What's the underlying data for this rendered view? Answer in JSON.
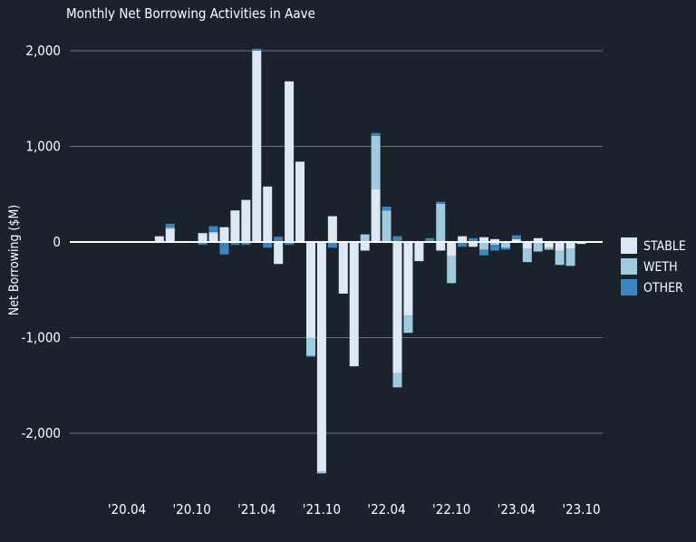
{
  "chart_data": {
    "type": "bar",
    "stacked": true,
    "title": "Monthly Net Borrowing Activities in Aave",
    "xlabel": "",
    "ylabel": "Net Borrowing ($M)",
    "ylim": [
      -2500,
      2100
    ],
    "yticks": [
      {
        "value": 2000,
        "label": "2,000"
      },
      {
        "value": 1000,
        "label": "1,000"
      },
      {
        "value": 0,
        "label": "0"
      },
      {
        "value": -1000,
        "label": "-1,000"
      },
      {
        "value": -2000,
        "label": "-2,000"
      }
    ],
    "xticks": [
      {
        "value": "2020-04",
        "label": "'20.04"
      },
      {
        "value": "2020-10",
        "label": "'20.10"
      },
      {
        "value": "2021-04",
        "label": "'21.04"
      },
      {
        "value": "2021-10",
        "label": "'21.10"
      },
      {
        "value": "2022-04",
        "label": "'22.04"
      },
      {
        "value": "2022-10",
        "label": "'22.10"
      },
      {
        "value": "2023-04",
        "label": "'23.04"
      },
      {
        "value": "2023-10",
        "label": "'23.10"
      }
    ],
    "grid": true,
    "legend_position": "right",
    "categories": [
      "2020-07",
      "2020-08",
      "2020-09",
      "2020-10",
      "2020-11",
      "2020-12",
      "2021-01",
      "2021-02",
      "2021-03",
      "2021-04",
      "2021-05",
      "2021-06",
      "2021-07",
      "2021-08",
      "2021-09",
      "2021-10",
      "2021-11",
      "2021-12",
      "2022-01",
      "2022-02",
      "2022-03",
      "2022-04",
      "2022-05",
      "2022-06",
      "2022-07",
      "2022-08",
      "2022-09",
      "2022-10",
      "2022-11",
      "2022-12",
      "2023-01",
      "2023-02",
      "2023-03",
      "2023-04",
      "2023-05",
      "2023-06",
      "2023-07",
      "2023-08",
      "2023-09",
      "2023-10"
    ],
    "series": [
      {
        "name": "STABLE",
        "color": "#dce9f5",
        "values": [
          60,
          140,
          5,
          0,
          85,
          90,
          155,
          330,
          440,
          2000,
          580,
          -230,
          1680,
          840,
          -1000,
          -2400,
          270,
          -540,
          -1300,
          -90,
          550,
          0,
          -1370,
          -770,
          -200,
          10,
          -90,
          -150,
          60,
          -50,
          50,
          30,
          0,
          30,
          -70,
          40,
          -60,
          -90,
          -70,
          -20
        ]
      },
      {
        "name": "WETH",
        "color": "#9fcbe1",
        "values": [
          0,
          10,
          0,
          5,
          10,
          15,
          0,
          0,
          0,
          0,
          0,
          0,
          0,
          0,
          -190,
          -20,
          0,
          0,
          0,
          80,
          560,
          330,
          -150,
          -180,
          0,
          0,
          400,
          -280,
          0,
          0,
          -80,
          -30,
          -60,
          0,
          -140,
          -100,
          -20,
          -150,
          -180,
          0
        ]
      },
      {
        "name": "OTHER",
        "color": "#3b86c2",
        "values": [
          0,
          40,
          5,
          0,
          -30,
          60,
          -130,
          -30,
          -30,
          20,
          -60,
          55,
          -30,
          0,
          -10,
          0,
          -60,
          0,
          0,
          0,
          30,
          40,
          60,
          10,
          0,
          30,
          20,
          0,
          -50,
          40,
          -60,
          -60,
          -20,
          40,
          0,
          0,
          0,
          0,
          0,
          0
        ]
      }
    ]
  }
}
